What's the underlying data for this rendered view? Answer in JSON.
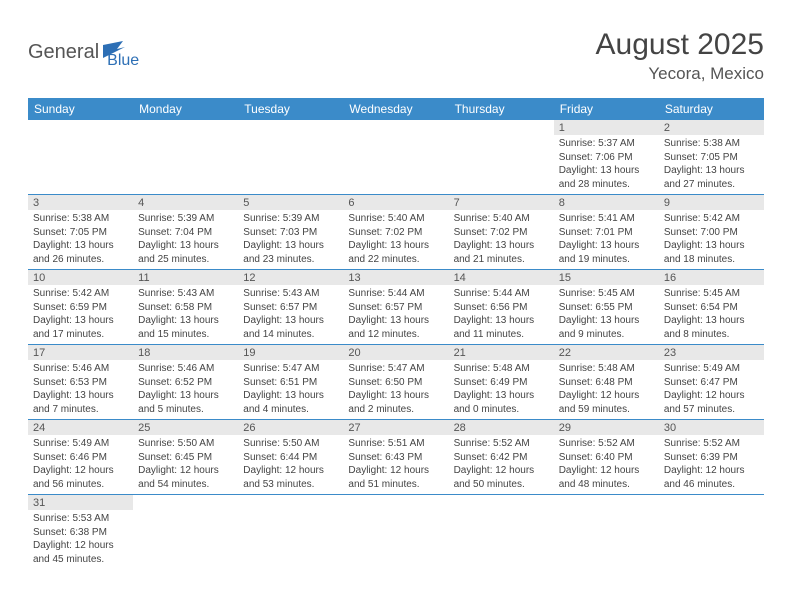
{
  "logo": {
    "part1": "General",
    "part2": "Blue"
  },
  "title": "August 2025",
  "location": "Yecora, Mexico",
  "colors": {
    "header_bg": "#3b8bc9",
    "header_text": "#ffffff",
    "daynum_bg": "#e8e8e8",
    "row_border": "#3b8bc9",
    "logo_blue": "#2d6fb5",
    "logo_gray": "#555555",
    "body_text": "#444444"
  },
  "weekdays": [
    "Sunday",
    "Monday",
    "Tuesday",
    "Wednesday",
    "Thursday",
    "Friday",
    "Saturday"
  ],
  "weeks": [
    [
      {
        "n": "",
        "sr": "",
        "ss": "",
        "dl": ""
      },
      {
        "n": "",
        "sr": "",
        "ss": "",
        "dl": ""
      },
      {
        "n": "",
        "sr": "",
        "ss": "",
        "dl": ""
      },
      {
        "n": "",
        "sr": "",
        "ss": "",
        "dl": ""
      },
      {
        "n": "",
        "sr": "",
        "ss": "",
        "dl": ""
      },
      {
        "n": "1",
        "sr": "Sunrise: 5:37 AM",
        "ss": "Sunset: 7:06 PM",
        "dl": "Daylight: 13 hours and 28 minutes."
      },
      {
        "n": "2",
        "sr": "Sunrise: 5:38 AM",
        "ss": "Sunset: 7:05 PM",
        "dl": "Daylight: 13 hours and 27 minutes."
      }
    ],
    [
      {
        "n": "3",
        "sr": "Sunrise: 5:38 AM",
        "ss": "Sunset: 7:05 PM",
        "dl": "Daylight: 13 hours and 26 minutes."
      },
      {
        "n": "4",
        "sr": "Sunrise: 5:39 AM",
        "ss": "Sunset: 7:04 PM",
        "dl": "Daylight: 13 hours and 25 minutes."
      },
      {
        "n": "5",
        "sr": "Sunrise: 5:39 AM",
        "ss": "Sunset: 7:03 PM",
        "dl": "Daylight: 13 hours and 23 minutes."
      },
      {
        "n": "6",
        "sr": "Sunrise: 5:40 AM",
        "ss": "Sunset: 7:02 PM",
        "dl": "Daylight: 13 hours and 22 minutes."
      },
      {
        "n": "7",
        "sr": "Sunrise: 5:40 AM",
        "ss": "Sunset: 7:02 PM",
        "dl": "Daylight: 13 hours and 21 minutes."
      },
      {
        "n": "8",
        "sr": "Sunrise: 5:41 AM",
        "ss": "Sunset: 7:01 PM",
        "dl": "Daylight: 13 hours and 19 minutes."
      },
      {
        "n": "9",
        "sr": "Sunrise: 5:42 AM",
        "ss": "Sunset: 7:00 PM",
        "dl": "Daylight: 13 hours and 18 minutes."
      }
    ],
    [
      {
        "n": "10",
        "sr": "Sunrise: 5:42 AM",
        "ss": "Sunset: 6:59 PM",
        "dl": "Daylight: 13 hours and 17 minutes."
      },
      {
        "n": "11",
        "sr": "Sunrise: 5:43 AM",
        "ss": "Sunset: 6:58 PM",
        "dl": "Daylight: 13 hours and 15 minutes."
      },
      {
        "n": "12",
        "sr": "Sunrise: 5:43 AM",
        "ss": "Sunset: 6:57 PM",
        "dl": "Daylight: 13 hours and 14 minutes."
      },
      {
        "n": "13",
        "sr": "Sunrise: 5:44 AM",
        "ss": "Sunset: 6:57 PM",
        "dl": "Daylight: 13 hours and 12 minutes."
      },
      {
        "n": "14",
        "sr": "Sunrise: 5:44 AM",
        "ss": "Sunset: 6:56 PM",
        "dl": "Daylight: 13 hours and 11 minutes."
      },
      {
        "n": "15",
        "sr": "Sunrise: 5:45 AM",
        "ss": "Sunset: 6:55 PM",
        "dl": "Daylight: 13 hours and 9 minutes."
      },
      {
        "n": "16",
        "sr": "Sunrise: 5:45 AM",
        "ss": "Sunset: 6:54 PM",
        "dl": "Daylight: 13 hours and 8 minutes."
      }
    ],
    [
      {
        "n": "17",
        "sr": "Sunrise: 5:46 AM",
        "ss": "Sunset: 6:53 PM",
        "dl": "Daylight: 13 hours and 7 minutes."
      },
      {
        "n": "18",
        "sr": "Sunrise: 5:46 AM",
        "ss": "Sunset: 6:52 PM",
        "dl": "Daylight: 13 hours and 5 minutes."
      },
      {
        "n": "19",
        "sr": "Sunrise: 5:47 AM",
        "ss": "Sunset: 6:51 PM",
        "dl": "Daylight: 13 hours and 4 minutes."
      },
      {
        "n": "20",
        "sr": "Sunrise: 5:47 AM",
        "ss": "Sunset: 6:50 PM",
        "dl": "Daylight: 13 hours and 2 minutes."
      },
      {
        "n": "21",
        "sr": "Sunrise: 5:48 AM",
        "ss": "Sunset: 6:49 PM",
        "dl": "Daylight: 13 hours and 0 minutes."
      },
      {
        "n": "22",
        "sr": "Sunrise: 5:48 AM",
        "ss": "Sunset: 6:48 PM",
        "dl": "Daylight: 12 hours and 59 minutes."
      },
      {
        "n": "23",
        "sr": "Sunrise: 5:49 AM",
        "ss": "Sunset: 6:47 PM",
        "dl": "Daylight: 12 hours and 57 minutes."
      }
    ],
    [
      {
        "n": "24",
        "sr": "Sunrise: 5:49 AM",
        "ss": "Sunset: 6:46 PM",
        "dl": "Daylight: 12 hours and 56 minutes."
      },
      {
        "n": "25",
        "sr": "Sunrise: 5:50 AM",
        "ss": "Sunset: 6:45 PM",
        "dl": "Daylight: 12 hours and 54 minutes."
      },
      {
        "n": "26",
        "sr": "Sunrise: 5:50 AM",
        "ss": "Sunset: 6:44 PM",
        "dl": "Daylight: 12 hours and 53 minutes."
      },
      {
        "n": "27",
        "sr": "Sunrise: 5:51 AM",
        "ss": "Sunset: 6:43 PM",
        "dl": "Daylight: 12 hours and 51 minutes."
      },
      {
        "n": "28",
        "sr": "Sunrise: 5:52 AM",
        "ss": "Sunset: 6:42 PM",
        "dl": "Daylight: 12 hours and 50 minutes."
      },
      {
        "n": "29",
        "sr": "Sunrise: 5:52 AM",
        "ss": "Sunset: 6:40 PM",
        "dl": "Daylight: 12 hours and 48 minutes."
      },
      {
        "n": "30",
        "sr": "Sunrise: 5:52 AM",
        "ss": "Sunset: 6:39 PM",
        "dl": "Daylight: 12 hours and 46 minutes."
      }
    ],
    [
      {
        "n": "31",
        "sr": "Sunrise: 5:53 AM",
        "ss": "Sunset: 6:38 PM",
        "dl": "Daylight: 12 hours and 45 minutes."
      },
      {
        "n": "",
        "sr": "",
        "ss": "",
        "dl": ""
      },
      {
        "n": "",
        "sr": "",
        "ss": "",
        "dl": ""
      },
      {
        "n": "",
        "sr": "",
        "ss": "",
        "dl": ""
      },
      {
        "n": "",
        "sr": "",
        "ss": "",
        "dl": ""
      },
      {
        "n": "",
        "sr": "",
        "ss": "",
        "dl": ""
      },
      {
        "n": "",
        "sr": "",
        "ss": "",
        "dl": ""
      }
    ]
  ]
}
